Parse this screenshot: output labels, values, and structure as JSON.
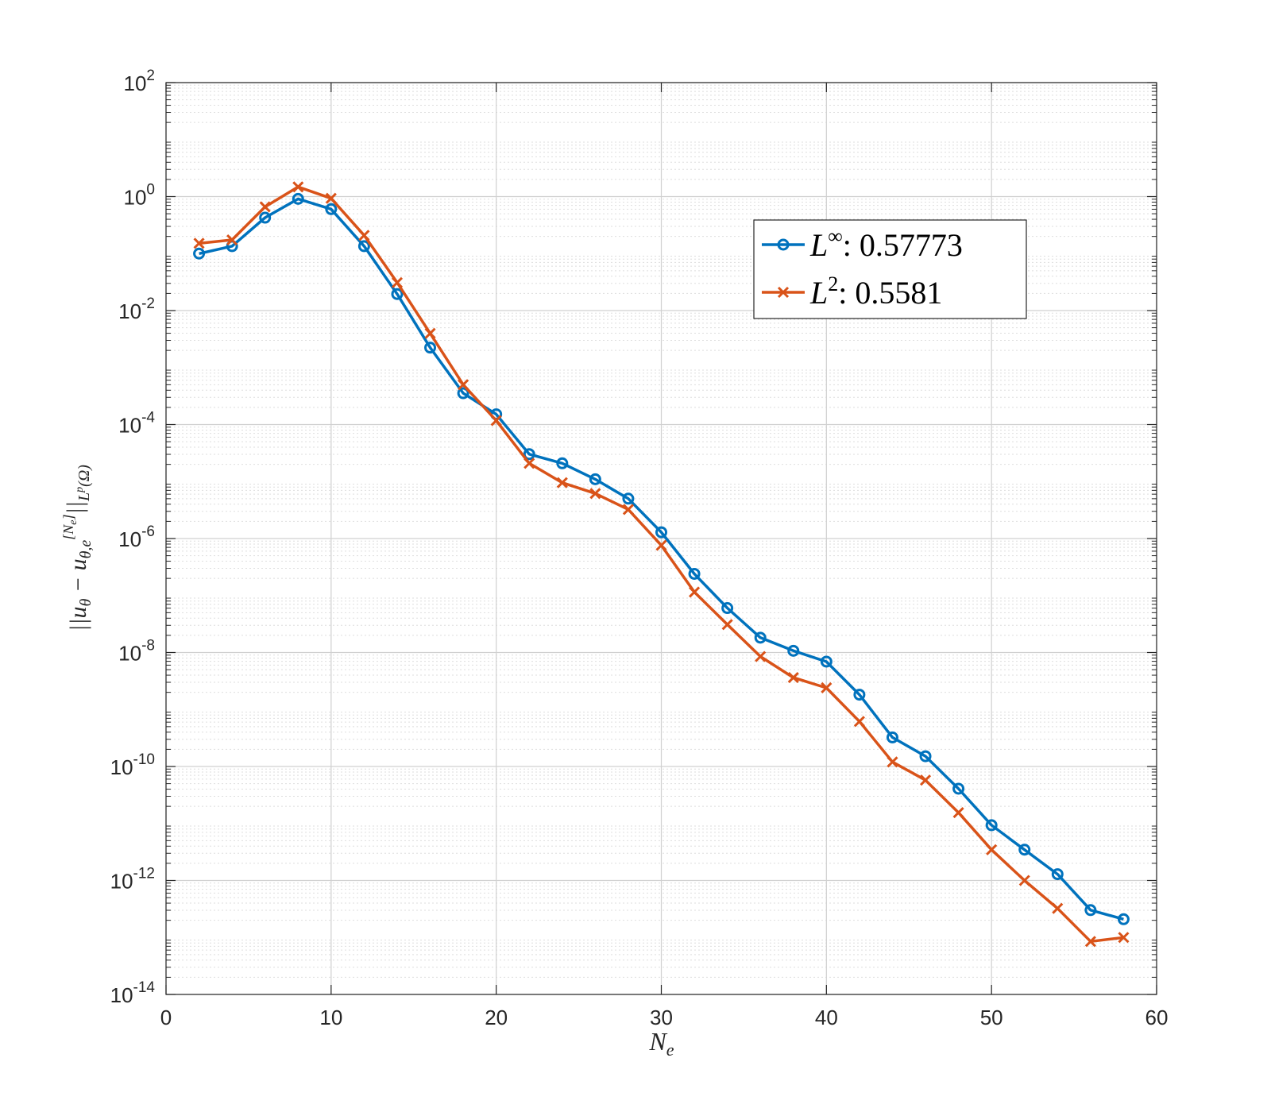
{
  "chart_data": {
    "type": "line",
    "title": "",
    "xlabel": "N_e",
    "ylabel": "||u_θ − u_{θ,e}^{[N_e]}||_{L^p(Ω)}",
    "x_scale": "linear",
    "y_scale": "log",
    "xlim": [
      0,
      60
    ],
    "ylim_exponents": [
      -14,
      2
    ],
    "grid": true,
    "minor_grid": true,
    "x_ticks": [
      "0",
      "10",
      "20",
      "30",
      "40",
      "50",
      "60"
    ],
    "y_tick_exponents": [
      "2",
      "0",
      "-2",
      "-4",
      "-6",
      "-8",
      "-10",
      "-12",
      "-14"
    ],
    "legend_position": "upper-right",
    "series": [
      {
        "name": "L∞",
        "legend_base": "L",
        "legend_sup": "∞",
        "legend_value": ": 0.57773",
        "color": "#0072BD",
        "marker": "circle",
        "x": [
          2,
          4,
          6,
          8,
          10,
          12,
          14,
          16,
          18,
          20,
          22,
          24,
          26,
          28,
          30,
          32,
          34,
          36,
          38,
          40,
          42,
          44,
          46,
          48,
          50,
          52,
          54,
          56,
          58
        ],
        "log10_y": [
          -1.0,
          -0.87,
          -0.37,
          -0.04,
          -0.22,
          -0.87,
          -1.71,
          -2.65,
          -3.45,
          -3.82,
          -4.52,
          -4.68,
          -4.96,
          -5.3,
          -5.89,
          -6.62,
          -7.22,
          -7.74,
          -7.97,
          -8.16,
          -8.74,
          -9.49,
          -9.82,
          -10.39,
          -11.03,
          -11.46,
          -11.89,
          -12.52,
          -12.68
        ]
      },
      {
        "name": "L2",
        "legend_base": "L",
        "legend_sup": "2",
        "legend_value": ": 0.5581",
        "color": "#D95319",
        "marker": "x",
        "x": [
          2,
          4,
          6,
          8,
          10,
          12,
          14,
          16,
          18,
          20,
          22,
          24,
          26,
          28,
          30,
          32,
          34,
          36,
          38,
          40,
          42,
          44,
          46,
          48,
          50,
          52,
          54,
          56,
          58
        ],
        "log10_y": [
          -0.82,
          -0.76,
          -0.18,
          0.17,
          -0.03,
          -0.68,
          -1.51,
          -2.4,
          -3.3,
          -3.93,
          -4.68,
          -5.02,
          -5.21,
          -5.49,
          -6.12,
          -6.94,
          -7.51,
          -8.07,
          -8.44,
          -8.62,
          -9.21,
          -9.92,
          -10.24,
          -10.81,
          -11.46,
          -12.0,
          -12.49,
          -13.07,
          -13.0
        ]
      }
    ]
  }
}
